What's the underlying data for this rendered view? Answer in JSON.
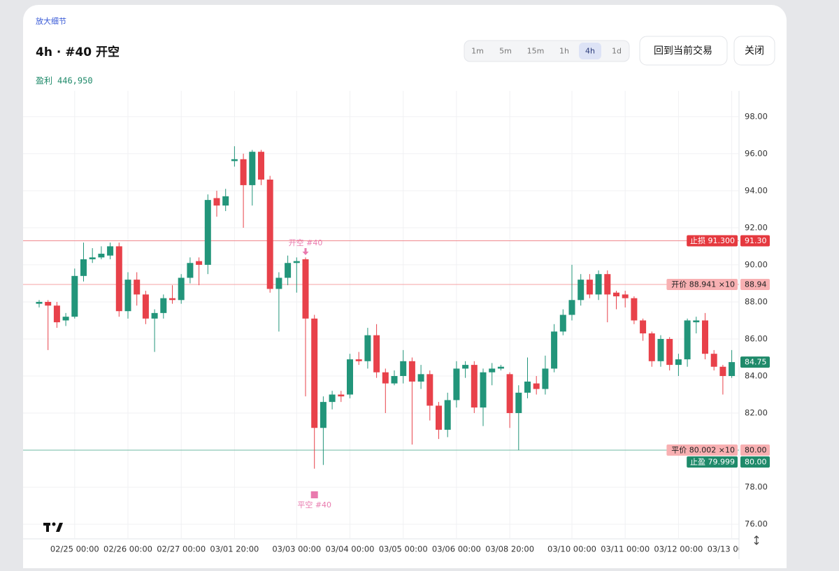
{
  "header": {
    "breadcrumb": "放大细节",
    "title": "4h · #40 开空",
    "profit_label": "盈利",
    "profit_value": "446,950"
  },
  "toolbar": {
    "timeframes": [
      "1m",
      "5m",
      "15m",
      "1h",
      "4h",
      "1d"
    ],
    "active": "4h",
    "buttons": [
      "回到当前交易",
      "关闭"
    ]
  },
  "chart_data": {
    "type": "candlestick",
    "categories": [
      null,
      null,
      null,
      null,
      "02/25 00:00",
      null,
      null,
      null,
      null,
      null,
      "02/26 00:00",
      null,
      null,
      null,
      null,
      null,
      "02/27 00:00",
      null,
      null,
      null,
      null,
      null,
      "03/01 20:00",
      null,
      null,
      null,
      null,
      null,
      null,
      "03/03 00:00",
      null,
      null,
      null,
      null,
      null,
      "03/04 00:00",
      null,
      null,
      null,
      null,
      null,
      "03/05 00:00",
      null,
      null,
      null,
      null,
      null,
      "03/06 00:00",
      null,
      null,
      null,
      null,
      null,
      "03/08 20:00",
      null,
      null,
      null,
      null,
      null,
      null,
      "03/10 00:00",
      null,
      null,
      null,
      null,
      null,
      "03/11 00:00",
      null,
      null,
      null,
      null,
      null,
      "03/12 00:00",
      null,
      null,
      null,
      null,
      null,
      "03/13 00:00"
    ],
    "open": [
      87.9,
      88.0,
      87.8,
      87.0,
      87.2,
      89.4,
      90.3,
      90.4,
      90.5,
      91.0,
      87.5,
      89.2,
      88.4,
      87.1,
      87.4,
      88.2,
      88.1,
      89.3,
      90.2,
      90.0,
      93.6,
      93.2,
      95.6,
      95.7,
      94.3,
      96.1,
      94.6,
      88.7,
      89.3,
      90.1,
      90.3,
      87.1,
      81.2,
      82.6,
      83.0,
      83.0,
      84.9,
      84.8,
      86.2,
      84.2,
      83.6,
      84.0,
      84.8,
      83.7,
      84.1,
      82.4,
      81.1,
      82.7,
      84.4,
      84.6,
      82.3,
      84.2,
      84.4,
      84.1,
      82.0,
      83.1,
      83.6,
      83.3,
      84.4,
      86.4,
      87.3,
      88.1,
      89.2,
      88.4,
      89.5,
      88.5,
      88.4,
      88.2,
      87.0,
      86.3,
      84.8,
      86.0,
      84.6,
      84.9,
      86.9,
      87.0,
      85.2,
      84.5,
      84.0
    ],
    "high": [
      88.1,
      88.1,
      88.0,
      87.4,
      89.8,
      91.2,
      90.9,
      91.0,
      91.2,
      91.2,
      89.6,
      89.6,
      88.6,
      87.6,
      88.4,
      88.9,
      89.5,
      90.4,
      90.4,
      93.8,
      94.0,
      94.1,
      96.4,
      96.0,
      96.2,
      96.2,
      94.8,
      89.6,
      90.5,
      90.4,
      90.4,
      87.3,
      82.9,
      83.2,
      83.2,
      85.2,
      85.3,
      86.6,
      86.8,
      84.4,
      84.3,
      85.4,
      85.0,
      84.6,
      84.3,
      82.6,
      83.1,
      84.8,
      84.8,
      84.8,
      84.4,
      84.7,
      84.6,
      84.2,
      83.5,
      85.0,
      84.0,
      85.1,
      86.8,
      87.6,
      90.0,
      89.5,
      89.5,
      89.7,
      89.7,
      88.6,
      88.6,
      88.3,
      87.1,
      86.4,
      86.2,
      86.1,
      85.2,
      87.1,
      87.2,
      87.4,
      85.4,
      84.6,
      85.4
    ],
    "low": [
      87.7,
      85.4,
      86.6,
      86.7,
      87.1,
      89.1,
      90.1,
      90.3,
      90.3,
      87.2,
      87.1,
      87.8,
      86.8,
      85.3,
      87.1,
      87.9,
      87.9,
      89.0,
      88.9,
      89.5,
      92.6,
      92.9,
      95.3,
      92.0,
      93.2,
      94.3,
      88.5,
      86.4,
      88.9,
      88.5,
      82.9,
      79.0,
      79.2,
      82.2,
      82.6,
      82.8,
      84.6,
      84.4,
      83.9,
      82.0,
      83.5,
      83.6,
      80.3,
      83.3,
      81.6,
      80.6,
      80.7,
      82.3,
      83.9,
      82.0,
      81.3,
      83.5,
      84.3,
      81.2,
      80.0,
      82.8,
      83.0,
      83.0,
      84.2,
      86.2,
      87.0,
      87.8,
      88.2,
      88.1,
      86.9,
      87.6,
      87.7,
      86.8,
      85.9,
      84.5,
      84.5,
      84.3,
      84.0,
      84.5,
      86.3,
      84.9,
      84.3,
      83.0,
      83.9
    ],
    "close": [
      88.0,
      87.8,
      86.9,
      87.2,
      89.4,
      90.3,
      90.4,
      90.6,
      91.0,
      87.5,
      89.2,
      88.4,
      87.1,
      87.4,
      88.2,
      88.1,
      89.3,
      90.1,
      90.0,
      93.5,
      93.2,
      93.7,
      95.7,
      94.3,
      96.1,
      94.6,
      88.7,
      89.3,
      90.1,
      90.2,
      87.1,
      81.2,
      82.6,
      83.0,
      82.9,
      84.9,
      84.8,
      86.2,
      84.2,
      83.6,
      84.0,
      84.8,
      83.7,
      84.1,
      82.4,
      81.1,
      82.7,
      84.4,
      84.6,
      82.3,
      84.2,
      84.4,
      84.5,
      82.0,
      83.1,
      83.7,
      83.3,
      84.4,
      86.4,
      87.3,
      88.1,
      89.2,
      88.4,
      89.5,
      88.4,
      88.3,
      88.2,
      87.0,
      86.3,
      84.8,
      86.0,
      84.6,
      84.9,
      87.0,
      87.0,
      85.2,
      84.5,
      84.0,
      84.75
    ],
    "up_color": "#22957a",
    "down_color": "#e8414a",
    "ylim": [
      75.25,
      99.2
    ],
    "yticks": [
      {
        "value": 76,
        "label": "76.00"
      },
      {
        "value": 78,
        "label": "78.00"
      },
      {
        "value": 80,
        "label": "80.00"
      },
      {
        "value": 82,
        "label": "82.00"
      },
      {
        "value": 84,
        "label": "84.00"
      },
      {
        "value": 86,
        "label": "86.00"
      },
      {
        "value": 88,
        "label": "88.00"
      },
      {
        "value": 90,
        "label": "90.00"
      },
      {
        "value": 92,
        "label": "92.00"
      },
      {
        "value": 94,
        "label": "94.00"
      },
      {
        "value": 96,
        "label": "96.00"
      },
      {
        "value": 98,
        "label": "98.00"
      }
    ],
    "grid": true,
    "price_lines": [
      {
        "value": 91.3,
        "label": "止损 91.300",
        "axis_label": "91.30",
        "color": "#f08a8e",
        "tag_color": "#e5393f",
        "text_color": "#ffffff"
      },
      {
        "value": 88.941,
        "label": "开价 88.941 ×10",
        "axis_label": "88.94",
        "color": "#f5a3a6",
        "tag_color": "#f8b0b2",
        "text_color": "#222222"
      },
      {
        "value": 80.002,
        "label": "平价 80.002 ×10",
        "axis_label": "80.00",
        "color": "#7fc2ad",
        "tag_color": "#f8b0b2",
        "text_color": "#222222"
      },
      {
        "value": 79.999,
        "label": "止盈 79.999",
        "axis_label": "80.00",
        "color": "#7fc2ad",
        "tag_color": "#1f8a6a",
        "text_color": "#ffffff"
      }
    ],
    "last_price": {
      "value": 84.75,
      "label": "84.75",
      "color": "#1f8a6a"
    },
    "annotations": [
      {
        "text": "开空 #40",
        "color": "#e97aae"
      },
      {
        "text": "平空 #40",
        "color": "#e97aae"
      }
    ]
  }
}
